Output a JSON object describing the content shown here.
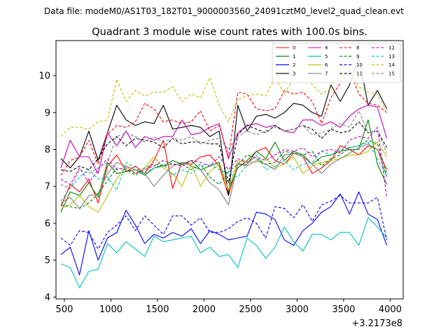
{
  "figure": {
    "suptitle": "Data file: modeM0/AS1T03_182T01_9000003560_24091cztM0_level2_quad_clean.evt"
  },
  "chart_data": {
    "type": "line",
    "title": "Quadrant 3 module wise count rates with 100.0s bins.",
    "xlabel": "",
    "ylabel": "",
    "x_offset_label": "+3.2173e8",
    "xlim": [
      410,
      4140
    ],
    "ylim": [
      3.95,
      10.95
    ],
    "xticks": [
      500,
      1000,
      1500,
      2000,
      2500,
      3000,
      3500,
      4000
    ],
    "xtick_labels": [
      "500",
      "1000",
      "1500",
      "2000",
      "2500",
      "3000",
      "3500",
      "4000"
    ],
    "yticks": [
      4,
      5,
      6,
      7,
      8,
      9,
      10
    ],
    "ytick_labels": [
      "4",
      "5",
      "6",
      "7",
      "8",
      "9",
      "10"
    ],
    "grid": false,
    "legend_position": "top-right",
    "legend_columns": 4,
    "x": [
      463,
      563,
      663,
      763,
      863,
      963,
      1063,
      1163,
      1263,
      1363,
      1463,
      1563,
      1663,
      1763,
      1863,
      1963,
      2063,
      2163,
      2263,
      2363,
      2463,
      2563,
      2663,
      2763,
      2863,
      2963,
      3063,
      3163,
      3263,
      3363,
      3463,
      3563,
      3663,
      3763,
      3863,
      3963
    ],
    "series": [
      {
        "name": "0",
        "color": "#ff0000",
        "dash": "solid",
        "values": [
          6.45,
          7.05,
          6.85,
          7.2,
          6.55,
          7.55,
          7.85,
          7.4,
          7.55,
          7.35,
          7.7,
          8.25,
          6.95,
          7.65,
          7.6,
          7.8,
          7.85,
          7.55,
          6.75,
          7.6,
          7.6,
          7.95,
          8.05,
          7.7,
          7.6,
          7.9,
          7.8,
          7.35,
          7.5,
          7.7,
          8.1,
          8.0,
          7.85,
          8.1,
          8.0,
          7.45
        ]
      },
      {
        "name": "1",
        "color": "#008000",
        "dash": "solid",
        "values": [
          6.3,
          6.85,
          6.75,
          7.1,
          6.7,
          7.65,
          7.35,
          7.4,
          7.45,
          7.3,
          7.5,
          7.55,
          7.7,
          7.6,
          7.7,
          7.45,
          7.55,
          7.65,
          6.9,
          7.5,
          7.7,
          7.95,
          7.75,
          8.2,
          7.7,
          7.95,
          7.85,
          7.6,
          7.8,
          7.85,
          7.95,
          8.0,
          8.0,
          8.8,
          7.6,
          7.05
        ]
      },
      {
        "name": "2",
        "color": "#0000ff",
        "dash": "solid",
        "values": [
          5.15,
          5.35,
          4.6,
          5.8,
          5.0,
          5.6,
          5.75,
          6.35,
          5.95,
          5.45,
          5.7,
          5.6,
          5.75,
          5.65,
          5.85,
          5.45,
          5.8,
          5.7,
          5.55,
          5.6,
          5.65,
          6.3,
          6.25,
          6.1,
          5.55,
          5.4,
          5.8,
          6.0,
          6.3,
          6.45,
          6.8,
          6.25,
          6.85,
          6.25,
          6.1,
          5.4
        ]
      },
      {
        "name": "3",
        "color": "#000000",
        "dash": "solid",
        "values": [
          7.75,
          7.5,
          7.8,
          8.5,
          7.7,
          8.45,
          9.2,
          8.8,
          8.65,
          8.75,
          8.7,
          9.2,
          8.55,
          8.6,
          8.65,
          8.6,
          8.35,
          8.5,
          6.75,
          9.2,
          8.5,
          8.9,
          8.95,
          8.85,
          9.0,
          9.25,
          9.2,
          9.0,
          8.9,
          9.75,
          9.3,
          9.75,
          10.5,
          9.2,
          9.6,
          9.1
        ]
      },
      {
        "name": "4",
        "color": "#bf00bf",
        "dash": "solid",
        "values": [
          7.5,
          8.25,
          7.8,
          7.8,
          7.35,
          8.45,
          8.1,
          8.5,
          8.05,
          8.35,
          8.25,
          8.35,
          8.35,
          8.8,
          8.4,
          8.45,
          8.6,
          8.7,
          7.75,
          8.45,
          8.65,
          8.7,
          8.6,
          8.65,
          8.5,
          8.45,
          8.8,
          8.8,
          8.65,
          8.75,
          8.6,
          8.9,
          9.1,
          9.2,
          9.15,
          8.3
        ]
      },
      {
        "name": "5",
        "color": "#00bfbf",
        "dash": "solid",
        "values": [
          4.9,
          4.8,
          4.25,
          4.7,
          4.75,
          5.45,
          5.2,
          5.5,
          5.3,
          5.1,
          5.65,
          5.5,
          5.55,
          5.6,
          5.65,
          5.2,
          5.35,
          5.1,
          5.15,
          4.8,
          5.6,
          5.4,
          5.05,
          5.35,
          5.9,
          5.5,
          5.25,
          5.7,
          5.7,
          5.55,
          5.75,
          5.75,
          5.4,
          6.15,
          5.9,
          5.6
        ]
      },
      {
        "name": "6",
        "color": "#bfbf00",
        "dash": "solid",
        "values": [
          6.4,
          6.5,
          6.75,
          6.45,
          6.3,
          6.75,
          7.2,
          7.55,
          7.35,
          7.5,
          7.8,
          7.5,
          7.35,
          7.0,
          7.6,
          7.0,
          7.4,
          7.6,
          6.9,
          7.7,
          7.65,
          7.65,
          7.75,
          7.5,
          7.6,
          7.8,
          7.35,
          7.55,
          7.65,
          7.7,
          7.75,
          7.85,
          7.85,
          7.95,
          8.2,
          7.8
        ]
      },
      {
        "name": "7",
        "color": "#808080",
        "dash": "solid",
        "values": [
          6.55,
          6.7,
          6.4,
          6.75,
          6.8,
          7.35,
          7.65,
          7.55,
          7.45,
          7.35,
          7.0,
          7.3,
          7.55,
          7.65,
          7.55,
          7.45,
          7.1,
          6.9,
          6.5,
          7.6,
          7.55,
          7.7,
          7.6,
          7.45,
          7.85,
          7.9,
          7.8,
          7.6,
          7.35,
          7.6,
          7.75,
          7.9,
          8.05,
          8.15,
          8.0,
          7.25
        ]
      },
      {
        "name": "8",
        "color": "#ff0000",
        "dash": "dashed",
        "values": [
          7.3,
          7.7,
          7.8,
          8.25,
          7.6,
          8.4,
          8.65,
          8.6,
          8.75,
          9.25,
          9.1,
          8.75,
          8.8,
          8.7,
          8.75,
          9.05,
          8.5,
          8.65,
          7.8,
          9.55,
          9.5,
          9.1,
          9.05,
          9.1,
          9.6,
          9.5,
          9.55,
          9.3,
          8.7,
          9.4,
          9.8,
          10.15,
          9.5,
          9.25,
          9.2,
          9.0
        ]
      },
      {
        "name": "9",
        "color": "#008000",
        "dash": "dashed",
        "values": [
          6.5,
          6.45,
          6.4,
          6.55,
          6.8,
          7.15,
          7.5,
          7.45,
          7.3,
          7.5,
          7.6,
          7.55,
          7.6,
          7.6,
          7.45,
          7.6,
          7.25,
          7.05,
          7.4,
          7.6,
          7.85,
          7.75,
          7.6,
          7.65,
          7.95,
          7.9,
          7.85,
          7.95,
          7.55,
          7.75,
          7.85,
          8.05,
          8.1,
          8.25,
          8.15,
          7.35
        ]
      },
      {
        "name": "10",
        "color": "#0000ff",
        "dash": "dashed",
        "values": [
          5.6,
          5.4,
          5.8,
          5.75,
          5.3,
          5.75,
          5.95,
          6.2,
          5.8,
          6.2,
          5.95,
          5.7,
          6.2,
          6.2,
          5.95,
          6.15,
          5.75,
          5.75,
          5.85,
          6.05,
          6.15,
          6.0,
          5.6,
          6.45,
          6.4,
          6.15,
          6.5,
          6.05,
          6.5,
          6.6,
          6.75,
          6.55,
          6.55,
          6.55,
          6.7,
          5.55
        ]
      },
      {
        "name": "11",
        "color": "#000000",
        "dash": "dashed",
        "values": [
          7.45,
          7.4,
          7.55,
          7.45,
          7.75,
          8.15,
          8.35,
          8.1,
          8.3,
          8.25,
          8.2,
          8.05,
          8.3,
          8.15,
          8.2,
          8.2,
          8.15,
          8.15,
          7.1,
          8.4,
          8.65,
          8.55,
          8.45,
          8.65,
          8.5,
          8.55,
          8.65,
          8.55,
          8.3,
          8.55,
          8.45,
          8.5,
          8.75,
          8.45,
          8.5,
          8.05
        ]
      },
      {
        "name": "12",
        "color": "#bf00bf",
        "dash": "dashed",
        "values": [
          7.2,
          7.05,
          7.5,
          7.1,
          7.45,
          7.75,
          7.45,
          7.5,
          7.35,
          7.45,
          7.55,
          7.7,
          7.6,
          7.55,
          7.7,
          7.65,
          7.55,
          7.8,
          7.45,
          7.75,
          7.65,
          7.8,
          7.7,
          7.85,
          8.0,
          7.95,
          8.05,
          7.8,
          7.95,
          8.0,
          7.9,
          8.25,
          8.35,
          8.3,
          8.6,
          6.7
        ]
      },
      {
        "name": "13",
        "color": "#00bfbf",
        "dash": "dashed",
        "values": [
          6.6,
          6.95,
          7.25,
          7.45,
          7.2,
          7.25,
          6.9,
          7.65,
          7.5,
          7.35,
          7.5,
          7.6,
          7.3,
          7.45,
          7.35,
          7.55,
          7.6,
          7.45,
          7.35,
          7.25,
          7.6,
          7.85,
          7.45,
          7.55,
          7.7,
          7.45,
          7.6,
          7.65,
          7.95,
          7.85,
          8.0,
          8.05,
          8.1,
          8.2,
          7.75,
          7.3
        ]
      },
      {
        "name": "14",
        "color": "#bfbf00",
        "dash": "dashed",
        "values": [
          8.35,
          8.6,
          8.6,
          8.55,
          8.75,
          8.8,
          9.9,
          9.3,
          9.6,
          9.45,
          9.55,
          9.55,
          9.7,
          9.3,
          9.5,
          9.4,
          9.95,
          9.2,
          8.75,
          9.35,
          9.45,
          9.5,
          9.45,
          9.95,
          9.5,
          9.95,
          10.3,
          9.75,
          9.5,
          9.65,
          10.3,
          10.15,
          9.7,
          9.55,
          9.5,
          9.0
        ]
      },
      {
        "name": "15",
        "color": "#808080",
        "dash": "dashed",
        "values": [
          7.05,
          6.95,
          7.45,
          7.35,
          7.5,
          7.65,
          8.35,
          8.45,
          8.35,
          8.2,
          8.35,
          8.2,
          8.3,
          8.25,
          8.35,
          8.15,
          8.25,
          8.3,
          8.0,
          8.35,
          8.5,
          8.4,
          8.5,
          8.6,
          8.5,
          8.55,
          8.65,
          8.4,
          8.45,
          8.55,
          8.7,
          8.6,
          9.05,
          8.45,
          8.5,
          7.9
        ]
      }
    ]
  }
}
